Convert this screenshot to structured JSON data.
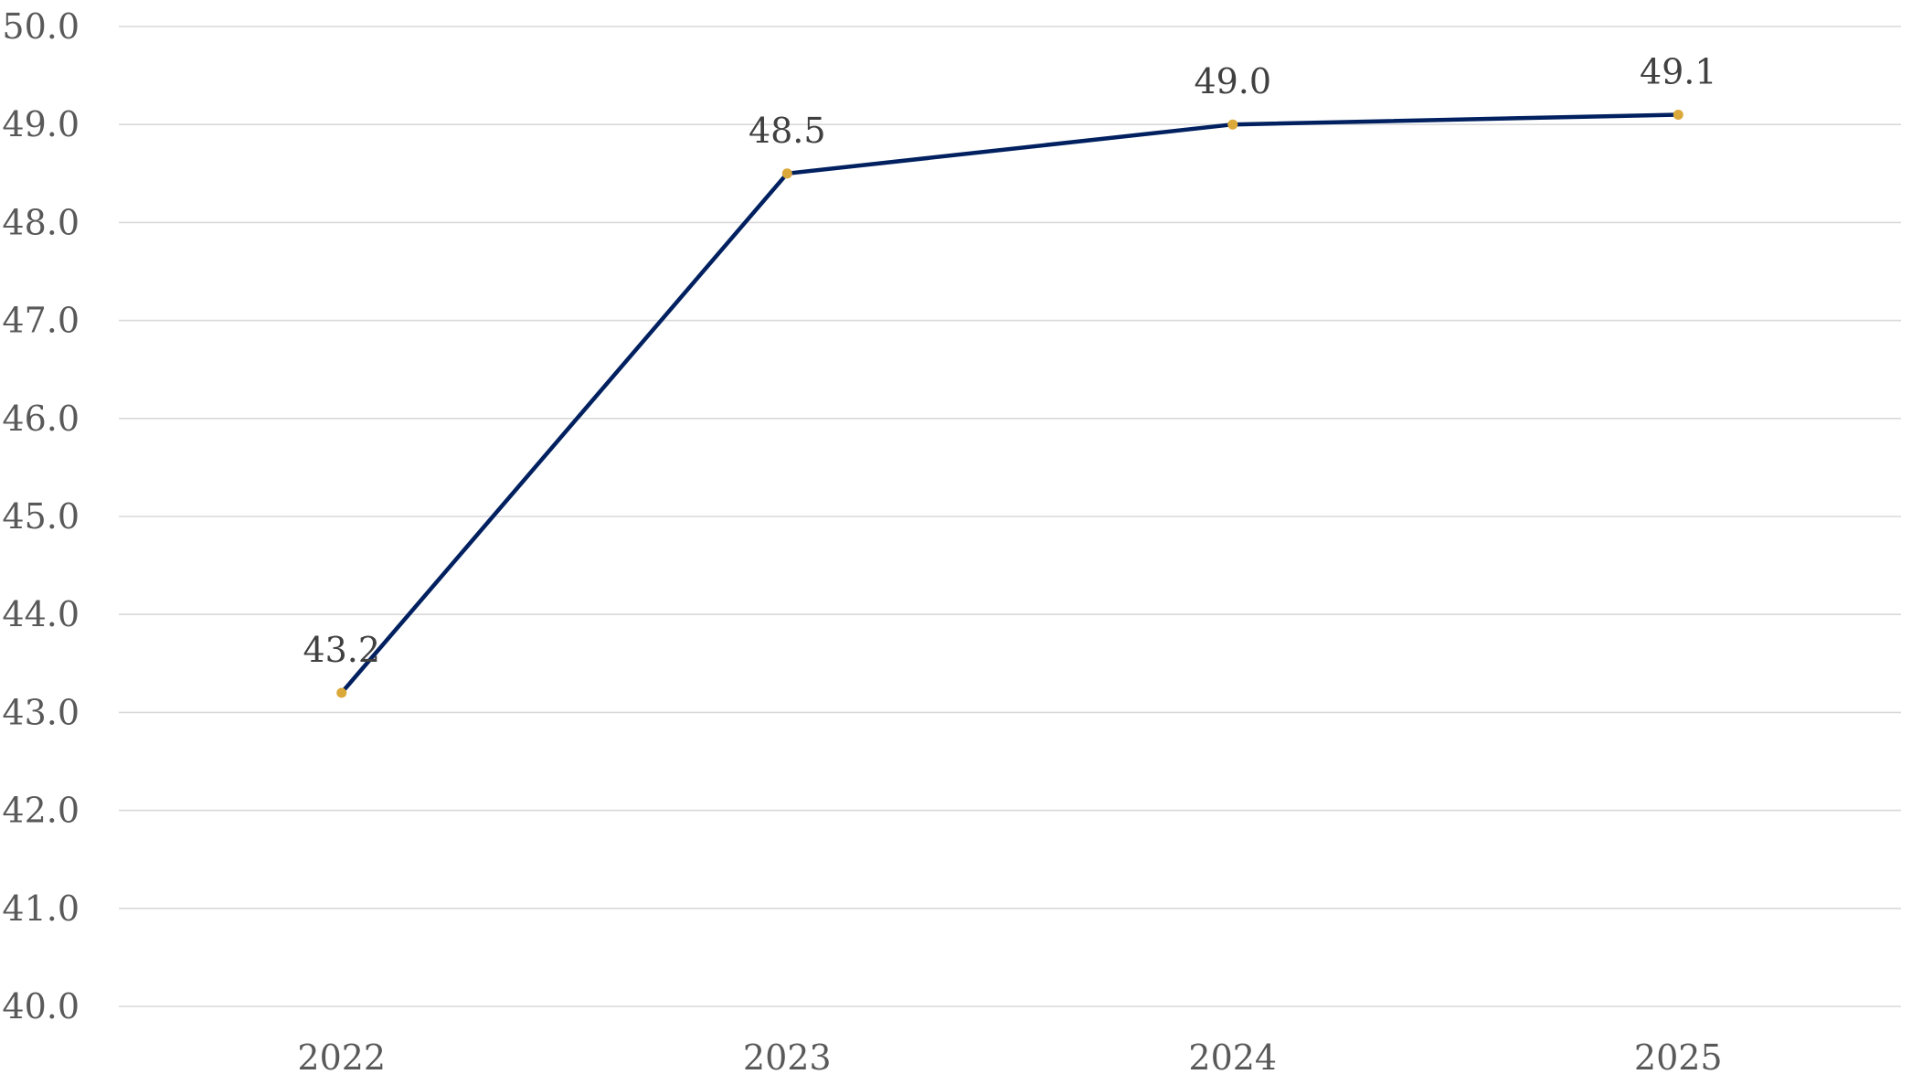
{
  "chart_data": {
    "type": "line",
    "categories": [
      "2022",
      "2023",
      "2024",
      "2025"
    ],
    "series": [
      {
        "values": [
          43.2,
          48.5,
          49.0,
          49.1
        ]
      }
    ],
    "data_labels": [
      "43.2",
      "48.5",
      "49.0",
      "49.1"
    ],
    "y_tick_labels": [
      "40.0",
      "41.0",
      "42.0",
      "43.0",
      "44.0",
      "45.0",
      "46.0",
      "47.0",
      "48.0",
      "49.0",
      "50.0"
    ],
    "ylim": [
      40.0,
      50.0
    ],
    "y_step": 1.0,
    "grid": true,
    "legend": "none",
    "title": "",
    "xlabel": "",
    "ylabel": "",
    "colors": {
      "line": "#002060",
      "marker": "#dba83a"
    }
  }
}
